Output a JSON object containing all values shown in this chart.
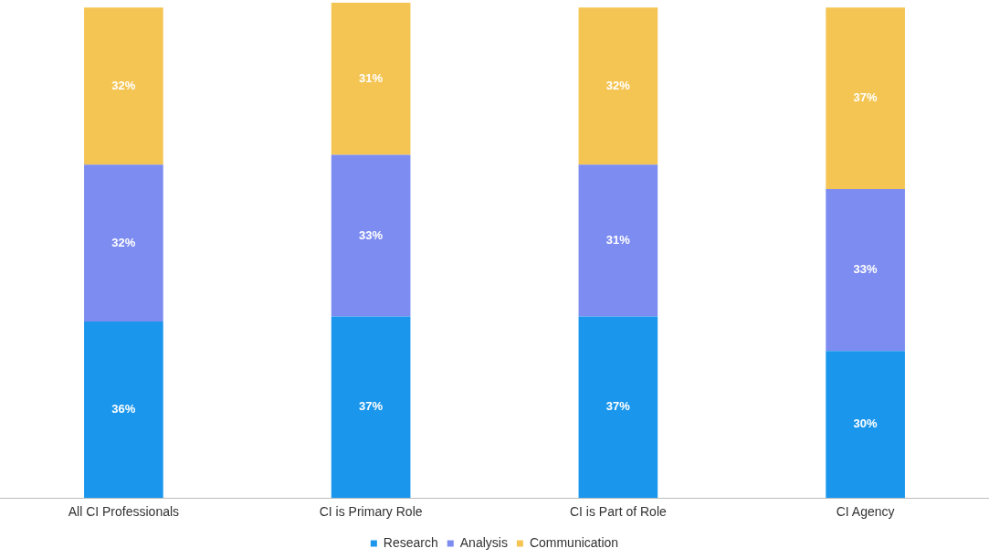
{
  "chart_data": {
    "type": "bar",
    "stacked": true,
    "categories": [
      "All CI Professionals",
      "CI is Primary Role",
      "CI is Part of Role",
      "CI Agency"
    ],
    "series": [
      {
        "name": "Research",
        "color": "#1a96ec",
        "values": [
          36,
          37,
          37,
          30
        ],
        "value_labels": [
          "36%",
          "37%",
          "37%",
          "30%"
        ]
      },
      {
        "name": "Analysis",
        "color": "#7d8cf0",
        "values": [
          32,
          33,
          31,
          33
        ],
        "value_labels": [
          "32%",
          "33%",
          "31%",
          "33%"
        ]
      },
      {
        "name": "Communication",
        "color": "#f4c553",
        "values": [
          32,
          31,
          32,
          37
        ],
        "value_labels": [
          "32%",
          "31%",
          "32%",
          "37%"
        ]
      }
    ],
    "legend": "bottom",
    "grid": false
  }
}
